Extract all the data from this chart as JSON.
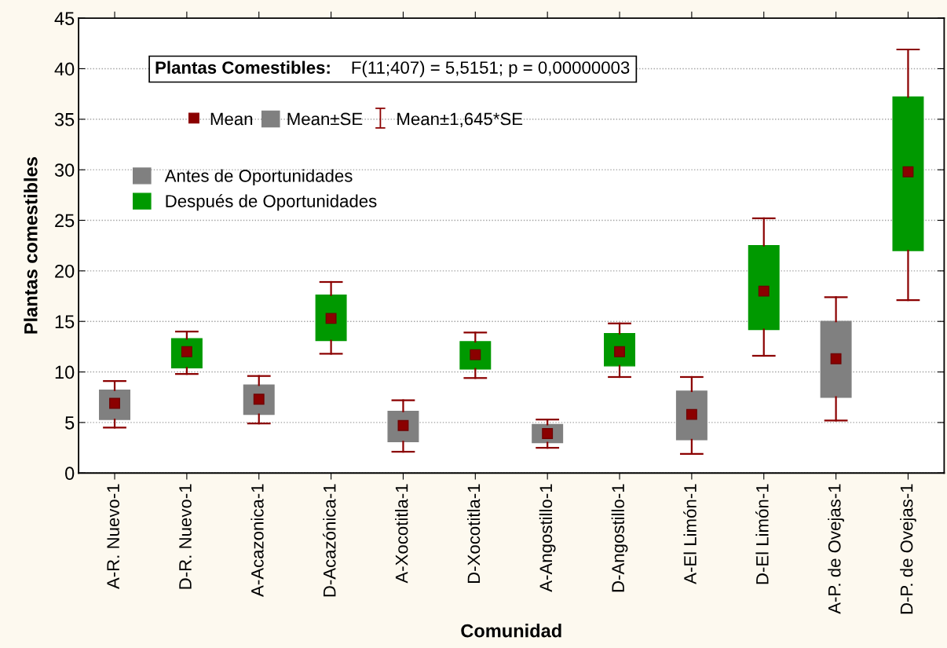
{
  "chart_data": {
    "type": "box",
    "title": "Plantas Comestibles:",
    "subtitle": "F(11;407) = 5,5151; p = 0,00000003",
    "xlabel": "Comunidad",
    "ylabel": "Plantas comestibles",
    "categories": [
      "A-R. Nuevo-1",
      "D-R. Nuevo-1",
      "A-Acazonica-1",
      "D-Acazónica-1",
      "A-Xocotitla-1",
      "D-Xocotitla-1",
      "A-Angostillo-1",
      "D-Angostillo-1",
      "A-El Limón-1",
      "D-El Limón-1",
      "A-P. de Ovejas-1",
      "D-P. de Ovejas-1"
    ],
    "series": [
      {
        "name": "Antes de Oportunidades",
        "color": "#808080",
        "boxes": [
          {
            "low": 4.5,
            "q1": 5.3,
            "mean": 6.9,
            "q3": 8.2,
            "high": 9.1
          },
          null,
          {
            "low": 4.9,
            "q1": 5.8,
            "mean": 7.3,
            "q3": 8.7,
            "high": 9.6
          },
          null,
          {
            "low": 2.1,
            "q1": 3.1,
            "mean": 4.7,
            "q3": 6.1,
            "high": 7.2
          },
          null,
          {
            "low": 2.5,
            "q1": 3.0,
            "mean": 3.9,
            "q3": 4.8,
            "high": 5.3
          },
          null,
          {
            "low": 1.9,
            "q1": 3.3,
            "mean": 5.8,
            "q3": 8.1,
            "high": 9.5
          },
          null,
          {
            "low": 5.2,
            "q1": 7.5,
            "mean": 11.3,
            "q3": 15.0,
            "high": 17.4
          },
          null
        ]
      },
      {
        "name": "Después de Oportunidades",
        "color": "#009900",
        "boxes": [
          null,
          {
            "low": 9.8,
            "q1": 10.4,
            "mean": 12.0,
            "q3": 13.3,
            "high": 14.0
          },
          null,
          {
            "low": 11.8,
            "q1": 13.1,
            "mean": 15.3,
            "q3": 17.6,
            "high": 18.9
          },
          null,
          {
            "low": 9.4,
            "q1": 10.3,
            "mean": 11.7,
            "q3": 13.0,
            "high": 13.9
          },
          null,
          {
            "low": 9.5,
            "q1": 10.6,
            "mean": 12.0,
            "q3": 13.8,
            "high": 14.8
          },
          null,
          {
            "low": 11.6,
            "q1": 14.2,
            "mean": 18.0,
            "q3": 22.5,
            "high": 25.2
          },
          null,
          {
            "low": 17.1,
            "q1": 22.0,
            "mean": 29.8,
            "q3": 37.2,
            "high": 41.9
          }
        ]
      }
    ],
    "annotations": [
      "Mean",
      "Mean±SE",
      "Mean±1,645*SE"
    ],
    "ylim": [
      0,
      45
    ],
    "yticks": [
      0,
      5,
      10,
      15,
      20,
      25,
      30,
      35,
      40,
      45
    ],
    "grid": "y",
    "legend": "top left",
    "marker": "square"
  }
}
